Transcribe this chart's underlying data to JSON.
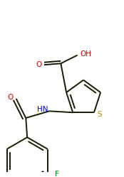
{
  "bg_color": "#ffffff",
  "bond_color": "#1a1a00",
  "S_color": "#b8860b",
  "O_color": "#cc0000",
  "N_color": "#0000cc",
  "F_color": "#008000",
  "lw": 1.4,
  "dbo": 4.5,
  "fig_w": 1.74,
  "fig_h": 2.49,
  "dpi": 100,
  "xlim": [
    0,
    174
  ],
  "ylim": [
    0,
    249
  ]
}
